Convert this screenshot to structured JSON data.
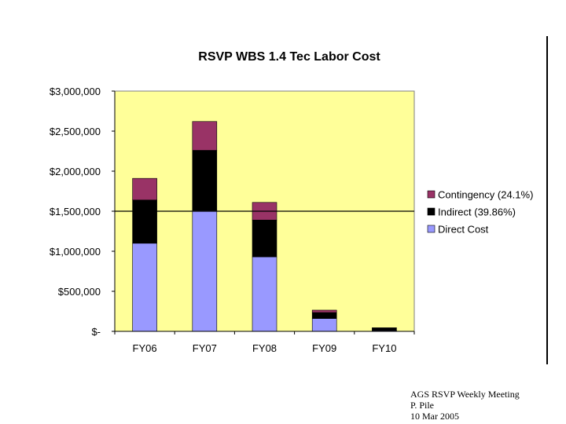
{
  "chart_data": {
    "type": "bar",
    "stacked": true,
    "title": "RSVP WBS 1.4 Tec Labor Cost",
    "categories": [
      "FY06",
      "FY07",
      "FY08",
      "FY09",
      "FY10"
    ],
    "ylim": [
      0,
      3000000
    ],
    "yticks": [
      {
        "value": 0,
        "label": "$-"
      },
      {
        "value": 500000,
        "label": "$500,000"
      },
      {
        "value": 1000000,
        "label": "$1,000,000"
      },
      {
        "value": 1500000,
        "label": "$1,500,000"
      },
      {
        "value": 2000000,
        "label": "$2,000,000"
      },
      {
        "value": 2500000,
        "label": "$2,500,000"
      },
      {
        "value": 3000000,
        "label": "$3,000,000"
      }
    ],
    "series": [
      {
        "name": "Direct Cost",
        "color": "#9999ff",
        "values": [
          1100000,
          1510000,
          930000,
          160000,
          10000
        ]
      },
      {
        "name": "Indirect (39.86%)",
        "color": "#000000",
        "values": [
          540000,
          750000,
          460000,
          75000,
          30000
        ]
      },
      {
        "name": "Contingency (24.1%)",
        "color": "#993366",
        "values": [
          270000,
          360000,
          220000,
          30000,
          5000
        ]
      }
    ],
    "legend_order": [
      2,
      1,
      0
    ],
    "legend_position": "right",
    "plot_background": "#ffff99",
    "grid": false,
    "reference_line": {
      "value": 1500000
    }
  },
  "footer": {
    "line1": "AGS RSVP Weekly Meeting",
    "line2": "P. Pile",
    "line3": "10 Mar 2005"
  }
}
